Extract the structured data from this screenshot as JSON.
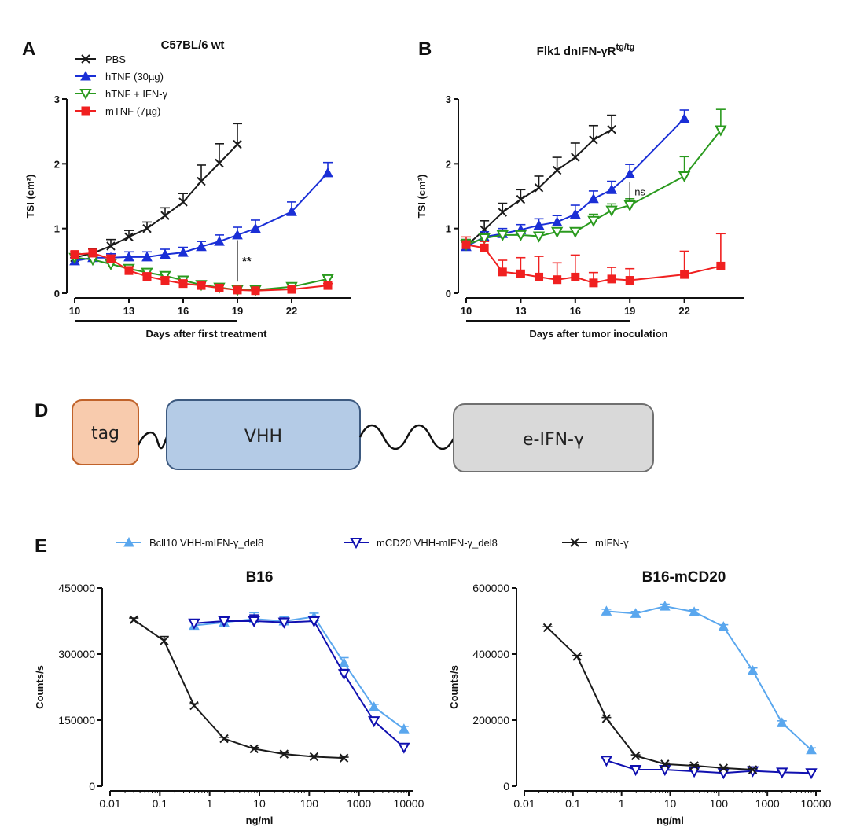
{
  "figure": {
    "panel_a_letter": "A",
    "panel_b_letter": "B",
    "panel_d_letter": "D",
    "panel_e_letter": "E"
  },
  "colors": {
    "black": "#1a1a1a",
    "blue": "#1a2fd6",
    "green": "#2a9a1e",
    "red": "#f02020",
    "lightblue": "#5aa7ee",
    "navy": "#1010b0"
  },
  "construct": {
    "tag_label": "tag",
    "vhh_label": "VHH",
    "ifn_label": "e-IFN-γ",
    "colors": {
      "tag_fill": "#f8cbad",
      "tag_stroke": "#c0622a",
      "vhh_fill": "#b4cbe6",
      "vhh_stroke": "#3d5a80",
      "ifn_fill": "#d9d9d9",
      "ifn_stroke": "#707070"
    }
  },
  "chart_data": [
    {
      "id": "A",
      "type": "line",
      "title": "C57BL/6 wt",
      "xlabel": "Days after first treatment",
      "ylabel": "TSI (cm²)",
      "xlim": [
        10,
        25
      ],
      "ylim": [
        0,
        3
      ],
      "xticks": [
        10,
        13,
        16,
        19,
        22
      ],
      "yticks": [
        0,
        1,
        2,
        3
      ],
      "underline_range": [
        10,
        19
      ],
      "legend_position": "top-left",
      "series": [
        {
          "name": "PBS",
          "color": "black",
          "marker": "x",
          "x": [
            10,
            11,
            12,
            13,
            14,
            15,
            16,
            17,
            18,
            19
          ],
          "y": [
            0.55,
            0.62,
            0.73,
            0.87,
            1.0,
            1.2,
            1.41,
            1.73,
            2.01,
            2.3
          ],
          "err": [
            0.05,
            0.07,
            0.1,
            0.1,
            0.1,
            0.12,
            0.13,
            0.25,
            0.3,
            0.32
          ]
        },
        {
          "name": "hTNF (30µg)",
          "color": "blue",
          "marker": "triangle-up",
          "x": [
            10,
            11,
            12,
            13,
            14,
            15,
            16,
            17,
            18,
            19,
            20,
            22,
            24
          ],
          "y": [
            0.5,
            0.55,
            0.55,
            0.56,
            0.56,
            0.6,
            0.63,
            0.72,
            0.8,
            0.9,
            1.0,
            1.26,
            1.86
          ],
          "err": [
            0.05,
            0.05,
            0.06,
            0.08,
            0.08,
            0.08,
            0.08,
            0.08,
            0.1,
            0.12,
            0.13,
            0.15,
            0.16
          ]
        },
        {
          "name": "hTNF + IFN-γ",
          "color": "green",
          "marker": "triangle-down-open",
          "x": [
            10,
            11,
            12,
            13,
            14,
            15,
            16,
            17,
            18,
            19,
            20,
            22,
            24
          ],
          "y": [
            0.55,
            0.52,
            0.45,
            0.38,
            0.32,
            0.27,
            0.2,
            0.13,
            0.09,
            0.05,
            0.05,
            0.1,
            0.22
          ],
          "err": [
            0.05,
            0.05,
            0.05,
            0.05,
            0.05,
            0.05,
            0.05,
            0.04,
            0.03,
            0.02,
            0.02,
            0.03,
            0.03
          ]
        },
        {
          "name": "mTNF (7µg)",
          "color": "red",
          "marker": "square",
          "x": [
            10,
            11,
            12,
            13,
            14,
            15,
            16,
            17,
            18,
            19,
            20,
            22,
            24
          ],
          "y": [
            0.6,
            0.62,
            0.53,
            0.35,
            0.26,
            0.2,
            0.15,
            0.12,
            0.08,
            0.05,
            0.04,
            0.06,
            0.12
          ],
          "err": [
            0.04,
            0.06,
            0.06,
            0.06,
            0.05,
            0.05,
            0.05,
            0.04,
            0.04,
            0.02,
            0.02,
            0.03,
            0.03
          ]
        }
      ],
      "annotation": {
        "label": "**",
        "x": 19,
        "y_from": 0.18,
        "y_to": 0.82
      }
    },
    {
      "id": "B",
      "type": "line",
      "title": "Flk1 dnIFN-γR",
      "title_sup": "tg/tg",
      "xlabel": "Days after tumor inoculation",
      "ylabel": "TSI (cm²)",
      "xlim": [
        10,
        25
      ],
      "ylim": [
        0,
        3
      ],
      "xticks": [
        10,
        13,
        16,
        19,
        22
      ],
      "yticks": [
        0,
        1,
        2,
        3
      ],
      "underline_range": [
        10,
        19
      ],
      "series": [
        {
          "name": "PBS",
          "color": "black",
          "marker": "x",
          "x": [
            10,
            11,
            12,
            13,
            14,
            15,
            16,
            17,
            18
          ],
          "y": [
            0.73,
            0.98,
            1.25,
            1.45,
            1.63,
            1.9,
            2.1,
            2.37,
            2.53
          ],
          "err": [
            0.1,
            0.14,
            0.14,
            0.15,
            0.18,
            0.2,
            0.22,
            0.22,
            0.22
          ]
        },
        {
          "name": "hTNF (30µg)",
          "color": "blue",
          "marker": "triangle-up",
          "x": [
            10,
            11,
            12,
            13,
            14,
            15,
            16,
            17,
            18,
            19,
            22
          ],
          "y": [
            0.72,
            0.87,
            0.92,
            0.98,
            1.05,
            1.1,
            1.22,
            1.46,
            1.6,
            1.84,
            2.7
          ],
          "err": [
            0.1,
            0.08,
            0.08,
            0.08,
            0.1,
            0.1,
            0.14,
            0.12,
            0.13,
            0.15,
            0.13
          ]
        },
        {
          "name": "hTNF + IFN-γ",
          "color": "green",
          "marker": "triangle-down-open",
          "x": [
            10,
            11,
            12,
            13,
            14,
            15,
            16,
            17,
            18,
            19,
            22,
            24
          ],
          "y": [
            0.75,
            0.85,
            0.9,
            0.9,
            0.88,
            0.95,
            0.95,
            1.12,
            1.28,
            1.36,
            1.81,
            2.52
          ],
          "err": [
            0.08,
            0.06,
            0.06,
            0.05,
            0.05,
            0.05,
            0.06,
            0.1,
            0.1,
            0.1,
            0.3,
            0.32
          ]
        },
        {
          "name": "mTNF (7µg)",
          "color": "red",
          "marker": "square",
          "x": [
            10,
            11,
            12,
            13,
            14,
            15,
            16,
            17,
            18,
            19,
            22,
            24
          ],
          "y": [
            0.75,
            0.7,
            0.33,
            0.3,
            0.25,
            0.21,
            0.25,
            0.16,
            0.22,
            0.2,
            0.29,
            0.42
          ],
          "err": [
            0.12,
            0.1,
            0.18,
            0.25,
            0.32,
            0.26,
            0.34,
            0.16,
            0.18,
            0.18,
            0.36,
            0.5
          ]
        }
      ],
      "annotation": {
        "label": "ns",
        "x": 19,
        "y_from": 1.43,
        "y_to": 1.72
      }
    },
    {
      "id": "E-B16",
      "type": "line",
      "title": "B16",
      "xlabel": "ng/ml",
      "ylabel": "Counts/s",
      "xscale": "log",
      "xlim": [
        0.01,
        10000
      ],
      "ylim": [
        0,
        450000
      ],
      "xticks": [
        0.01,
        0.1,
        1,
        10,
        100,
        1000,
        10000
      ],
      "xtick_labels": [
        "0.01",
        "0.1",
        "1",
        "10",
        "100",
        "1000",
        "10000"
      ],
      "yticks": [
        0,
        150000,
        300000,
        450000
      ],
      "ytick_labels": [
        "0",
        "150000",
        "300000",
        "450000"
      ],
      "legend_position": "top",
      "series": [
        {
          "name": "Bcll10 VHH-mIFN-γ_del8",
          "color": "lightblue",
          "marker": "triangle-up",
          "x": [
            0.488,
            1.95,
            7.8,
            31.25,
            125,
            500,
            2000,
            8000
          ],
          "y": [
            365000,
            372000,
            380000,
            375000,
            385000,
            280000,
            180000,
            130000
          ],
          "err": [
            14000,
            14000,
            14000,
            10000,
            8000,
            12000,
            6000,
            6000
          ]
        },
        {
          "name": "mCD20 VHH-mIFN-γ_del8",
          "color": "navy",
          "marker": "triangle-down-open",
          "x": [
            0.488,
            1.95,
            7.8,
            31.25,
            125,
            500,
            2000,
            8000
          ],
          "y": [
            370000,
            375000,
            375000,
            372000,
            375000,
            255000,
            148000,
            88000
          ],
          "err": [
            8000,
            10000,
            14000,
            10000,
            8000,
            10000,
            6000,
            6000
          ]
        },
        {
          "name": "mIFN-γ",
          "color": "black",
          "marker": "x",
          "x": [
            0.03,
            0.122,
            0.488,
            1.95,
            7.8,
            31.25,
            125,
            500
          ],
          "y": [
            378000,
            330000,
            183000,
            108000,
            85000,
            73000,
            67000,
            64000
          ],
          "err": [
            4000,
            10000,
            4000,
            3000,
            3000,
            3000,
            2000,
            2000
          ]
        }
      ]
    },
    {
      "id": "E-B16-mCD20",
      "type": "line",
      "title": "B16-mCD20",
      "xlabel": "ng/ml",
      "ylabel": "Counts/s",
      "xscale": "log",
      "xlim": [
        0.01,
        10000
      ],
      "ylim": [
        0,
        600000
      ],
      "xticks": [
        0.01,
        0.1,
        1,
        10,
        100,
        1000,
        10000
      ],
      "xtick_labels": [
        "0.01",
        "0.1",
        "1",
        "10",
        "100",
        "1000",
        "10000"
      ],
      "yticks": [
        0,
        200000,
        400000,
        600000
      ],
      "ytick_labels": [
        "0",
        "200000",
        "400000",
        "600000"
      ],
      "series": [
        {
          "name": "Bcll10 VHH-mIFN-γ_del8",
          "color": "lightblue",
          "marker": "triangle-up",
          "x": [
            0.488,
            1.95,
            7.8,
            31.25,
            125,
            500,
            2000,
            8000
          ],
          "y": [
            530000,
            523000,
            545000,
            528000,
            483000,
            350000,
            192000,
            110000
          ],
          "err": [
            6000,
            6000,
            6000,
            6000,
            6000,
            8000,
            6000,
            6000
          ]
        },
        {
          "name": "mCD20 VHH-mIFN-γ_del8",
          "color": "navy",
          "marker": "triangle-down-open",
          "x": [
            0.488,
            1.95,
            7.8,
            31.25,
            125,
            500,
            2000,
            8000
          ],
          "y": [
            78000,
            50000,
            50000,
            45000,
            40000,
            46000,
            42000,
            40000
          ],
          "err": [
            6000,
            6000,
            6000,
            6000,
            6000,
            6000,
            5000,
            5000
          ]
        },
        {
          "name": "mIFN-γ",
          "color": "black",
          "marker": "x",
          "x": [
            0.03,
            0.122,
            0.488,
            1.95,
            7.8,
            31.25,
            125,
            500
          ],
          "y": [
            480000,
            393000,
            205000,
            92000,
            67000,
            62000,
            55000,
            50000
          ],
          "err": [
            3000,
            3000,
            3000,
            3000,
            3000,
            3000,
            3000,
            3000
          ]
        }
      ]
    }
  ]
}
